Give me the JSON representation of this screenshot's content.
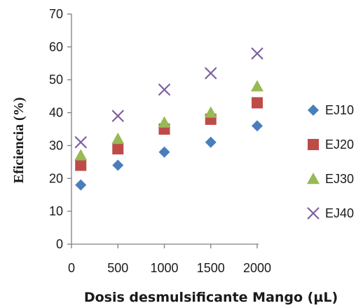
{
  "chart_data": {
    "type": "scatter",
    "title": "",
    "xlabel": "Dosis desmulsificante Mango (µL)",
    "ylabel": "Eficiencia (%)",
    "xlim": [
      0,
      2000
    ],
    "ylim": [
      0,
      70
    ],
    "xticks": [
      0,
      500,
      1000,
      1500,
      2000
    ],
    "yticks": [
      0,
      10,
      20,
      30,
      40,
      50,
      60,
      70
    ],
    "grid": false,
    "legend_position": "right",
    "series": [
      {
        "name": "EJ10",
        "marker": "diamond",
        "color": "#4A7EBB",
        "x": [
          100,
          500,
          1000,
          1500,
          2000
        ],
        "y": [
          18,
          24,
          28,
          31,
          36
        ]
      },
      {
        "name": "EJ20",
        "marker": "square",
        "color": "#BE4B48",
        "x": [
          100,
          500,
          1000,
          1500,
          2000
        ],
        "y": [
          24,
          29,
          35,
          38,
          43
        ]
      },
      {
        "name": "EJ30",
        "marker": "triangle",
        "color": "#98B954",
        "x": [
          100,
          500,
          1000,
          1500,
          2000
        ],
        "y": [
          27,
          32,
          37,
          40,
          48
        ]
      },
      {
        "name": "EJ40",
        "marker": "x",
        "color": "#7D60A0",
        "x": [
          100,
          500,
          1000,
          1500,
          2000
        ],
        "y": [
          31,
          39,
          47,
          52,
          58
        ]
      }
    ]
  }
}
